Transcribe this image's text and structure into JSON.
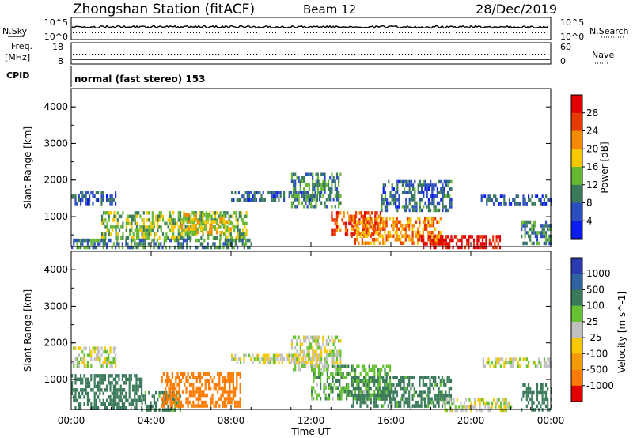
{
  "header": {
    "station": "Zhongshan Station (fitACF)",
    "beam": "Beam 12",
    "date": "28/Dec/2019",
    "cpid": "normal (fast stereo) 153"
  },
  "side_labels": {
    "nsky": "N.Sky",
    "nsearch": "N.Search",
    "freq": "Freq.",
    "freq_unit": "[MHz]",
    "cpid": "CPID",
    "nave": "Nave"
  },
  "small_axes": {
    "nsky_ticks_left": [
      "10^5",
      "10^0"
    ],
    "nsky_ticks_right": [
      "10^5",
      "10^0"
    ],
    "freq_ticks": [
      "18",
      "8"
    ],
    "nave_ticks": [
      "60",
      "0"
    ]
  },
  "colors": {
    "power": [
      "#0a1cf0",
      "#2a4dbf",
      "#3a7a5a",
      "#66b833",
      "#f5c800",
      "#f58a00",
      "#e83a00",
      "#e00000"
    ],
    "velocity": [
      "#2a3ab0",
      "#2e63a0",
      "#3a7a5a",
      "#66c233",
      "#c0c0c0",
      "#f5c800",
      "#f59a00",
      "#ff7a00",
      "#e00000"
    ]
  },
  "chart_data": [
    {
      "type": "heatmap",
      "name": "power",
      "xlabel": "",
      "ylabel": "Slant Range [km]",
      "xlim": [
        0,
        24
      ],
      "ylim": [
        180,
        4500
      ],
      "yticks": [
        "1000",
        "2000",
        "3000",
        "4000"
      ],
      "colorbar": {
        "label": "Power [dB]",
        "ticks": [
          "4",
          "8",
          "12",
          "16",
          "20",
          "24",
          "28"
        ],
        "range": [
          0,
          32
        ]
      },
      "echo_regions": [
        {
          "t_start": 0.0,
          "t_end": 2.2,
          "r_min": 1350,
          "r_max": 1700,
          "power": 7
        },
        {
          "t_start": 1.5,
          "t_end": 8.8,
          "r_min": 400,
          "r_max": 1150,
          "power": 14
        },
        {
          "t_start": 5.5,
          "t_end": 8.0,
          "r_min": 600,
          "r_max": 1100,
          "power": 18
        },
        {
          "t_start": 0.0,
          "t_end": 9.0,
          "r_min": 180,
          "r_max": 400,
          "power": 10
        },
        {
          "t_start": 8.0,
          "t_end": 12.5,
          "r_min": 1500,
          "r_max": 1700,
          "power": 7
        },
        {
          "t_start": 11.0,
          "t_end": 13.5,
          "r_min": 1300,
          "r_max": 2200,
          "power": 10
        },
        {
          "t_start": 13.0,
          "t_end": 15.5,
          "r_min": 550,
          "r_max": 1150,
          "power": 26
        },
        {
          "t_start": 14.0,
          "t_end": 18.5,
          "r_min": 300,
          "r_max": 1000,
          "power": 22
        },
        {
          "t_start": 17.5,
          "t_end": 21.5,
          "r_min": 180,
          "r_max": 500,
          "power": 30
        },
        {
          "t_start": 15.5,
          "t_end": 19.0,
          "r_min": 1200,
          "r_max": 2000,
          "power": 8
        },
        {
          "t_start": 20.5,
          "t_end": 24.0,
          "r_min": 1350,
          "r_max": 1600,
          "power": 7
        },
        {
          "t_start": 22.5,
          "t_end": 24.0,
          "r_min": 300,
          "r_max": 900,
          "power": 10
        }
      ]
    },
    {
      "type": "heatmap",
      "name": "velocity",
      "xlabel": "Time UT",
      "ylabel": "Slant Range [km]",
      "xlim": [
        0,
        24
      ],
      "ylim": [
        180,
        4500
      ],
      "xticks": [
        "00:00",
        "04:00",
        "08:00",
        "12:00",
        "16:00",
        "20:00",
        "00:00"
      ],
      "yticks": [
        "1000",
        "2000",
        "3000",
        "4000"
      ],
      "colorbar": {
        "label": "Velocity [m s^-1]",
        "ticks": [
          "1000",
          "500",
          "100",
          "25",
          "-25",
          "-100",
          "-500",
          "-1000"
        ]
      },
      "echo_regions": [
        {
          "t_start": 0.0,
          "t_end": 2.2,
          "r_min": 1350,
          "r_max": 1900,
          "velocity": 0
        },
        {
          "t_start": 0.0,
          "t_end": 3.5,
          "r_min": 180,
          "r_max": 1150,
          "velocity": 200
        },
        {
          "t_start": 3.5,
          "t_end": 5.5,
          "r_min": 180,
          "r_max": 700,
          "velocity": 150
        },
        {
          "t_start": 4.5,
          "t_end": 8.5,
          "r_min": 250,
          "r_max": 1200,
          "velocity": -300
        },
        {
          "t_start": 8.0,
          "t_end": 12.5,
          "r_min": 1450,
          "r_max": 1700,
          "velocity": 0
        },
        {
          "t_start": 11.0,
          "t_end": 13.5,
          "r_min": 1300,
          "r_max": 2200,
          "velocity": 0
        },
        {
          "t_start": 12.0,
          "t_end": 16.0,
          "r_min": 500,
          "r_max": 1400,
          "velocity": 80
        },
        {
          "t_start": 14.0,
          "t_end": 19.0,
          "r_min": 300,
          "r_max": 1100,
          "velocity": 150
        },
        {
          "t_start": 18.5,
          "t_end": 22.0,
          "r_min": 180,
          "r_max": 500,
          "velocity": 0
        },
        {
          "t_start": 20.5,
          "t_end": 24.0,
          "r_min": 1350,
          "r_max": 1600,
          "velocity": 0
        },
        {
          "t_start": 22.5,
          "t_end": 24.0,
          "r_min": 180,
          "r_max": 900,
          "velocity": 200
        }
      ]
    }
  ]
}
